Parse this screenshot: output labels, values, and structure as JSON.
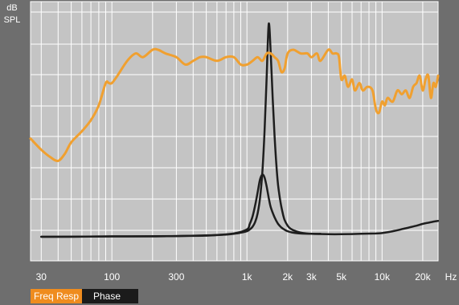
{
  "chart_data": {
    "type": "line",
    "y_axis_label_line1": "dB",
    "y_axis_label_line2": "SPL",
    "x_scale": "log",
    "xlim": [
      25,
      26000
    ],
    "x_tick_values": [
      30,
      100,
      300,
      1000,
      2000,
      3000,
      5000,
      10000,
      20000
    ],
    "x_tick_labels": [
      "30",
      "100",
      "300",
      "1k",
      "2k",
      "3k",
      "5k",
      "10k",
      "20k"
    ],
    "x_unit": "Hz",
    "grid": true,
    "series": [
      {
        "name": "Freq Resp",
        "color": "#f0a030",
        "x": [
          25,
          30,
          35,
          40,
          45,
          50,
          60,
          70,
          80,
          90,
          95,
          100,
          110,
          130,
          150,
          170,
          200,
          220,
          250,
          300,
          350,
          400,
          450,
          500,
          600,
          700,
          800,
          900,
          1000,
          1100,
          1200,
          1300,
          1400,
          1500,
          1600,
          1700,
          1800,
          1900,
          2000,
          2200,
          2500,
          2800,
          3000,
          3300,
          3500,
          4000,
          4300,
          4600,
          4800,
          5000,
          5300,
          5600,
          6000,
          6300,
          6800,
          7200,
          7800,
          8500,
          9000,
          9500,
          10000,
          10500,
          11000,
          12000,
          13000,
          14000,
          15000,
          16000,
          17000,
          18000,
          19000,
          20000,
          21000,
          22000,
          23000,
          24000,
          25000,
          26000
        ],
        "y": [
          63,
          60,
          58,
          57,
          59,
          62,
          65,
          68,
          72,
          78,
          78,
          78,
          80,
          84,
          86,
          85,
          87,
          87,
          86,
          85,
          83,
          84,
          85,
          85,
          84,
          85,
          85,
          83,
          83,
          84,
          85,
          84,
          86,
          86,
          85,
          84,
          81,
          82,
          86,
          87,
          86,
          86,
          85,
          86,
          84,
          87,
          86,
          86,
          85,
          79,
          80,
          77,
          79,
          76,
          78,
          76,
          77,
          76,
          71,
          70,
          73,
          72,
          74,
          73,
          76,
          75,
          76,
          74,
          77,
          78,
          80,
          76,
          79,
          80,
          74,
          78,
          77,
          80
        ]
      },
      {
        "name": "Phase",
        "color": "#1e1e1e",
        "x": [
          30,
          50,
          100,
          200,
          300,
          500,
          700,
          800,
          900,
          1000,
          1050,
          1100,
          1150,
          1200,
          1250,
          1300,
          1350,
          1400,
          1450,
          1500,
          1550,
          1600,
          1650,
          1700,
          1750,
          1800,
          1850,
          1900,
          2000,
          2100,
          2300,
          2600,
          3000,
          4000,
          5000,
          7000,
          9000,
          10000,
          12000,
          15000,
          18000,
          20000,
          22000,
          24000,
          26000
        ],
        "y": [
          36.5,
          36.5,
          36.6,
          36.6,
          36.7,
          36.8,
          37.1,
          37.3,
          37.6,
          38,
          38.5,
          39.2,
          40.5,
          42.8,
          47,
          54,
          65,
          80,
          94,
          86,
          74,
          64,
          56,
          50.5,
          47,
          44.5,
          42.5,
          41,
          39.5,
          38.7,
          38,
          37.5,
          37.3,
          37.2,
          37.2,
          37.3,
          37.4,
          37.5,
          38,
          38.8,
          39.5,
          40,
          40.3,
          40.6,
          40.8
        ]
      },
      {
        "name": "",
        "color": "#1e1e1e",
        "x": [
          30,
          100,
          300,
          600,
          800,
          1000,
          1050,
          1100,
          1150,
          1200,
          1250,
          1300,
          1350,
          1400,
          1450,
          1500,
          1600,
          1700,
          1800,
          1900,
          2000,
          2200,
          2500,
          3000,
          3500
        ],
        "y": [
          36.5,
          36.6,
          36.7,
          37,
          37.4,
          38.5,
          40,
          42,
          45,
          48.5,
          52,
          53.3,
          52.5,
          50,
          47,
          44.5,
          41.8,
          40,
          39,
          38.4,
          38,
          37.6,
          37.4,
          37.3,
          37.3
        ]
      }
    ]
  },
  "legend": {
    "freq_label": "Freq Resp",
    "freq_color": "#ef8c1e",
    "phase_label": "Phase",
    "phase_color": "#1b1b1b"
  }
}
